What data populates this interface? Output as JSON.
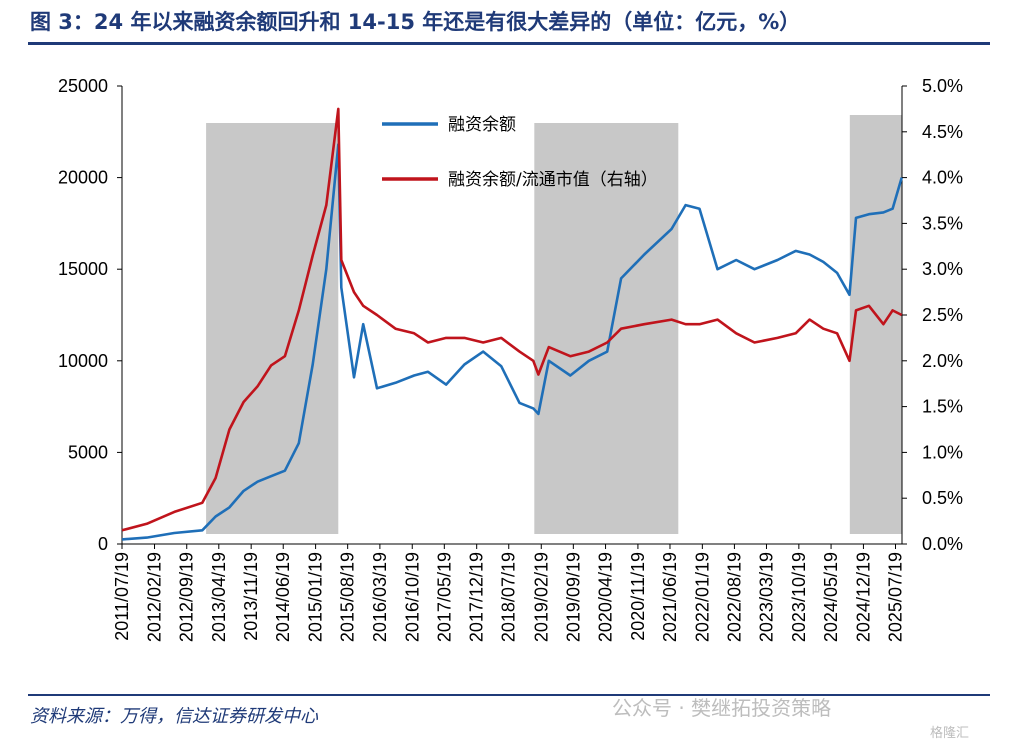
{
  "title": "图 3：24 年以来融资余额回升和 14-15 年还是有很大差异的（单位：亿元，%）",
  "source": "资料来源：万得，信达证券研发中心",
  "watermark": "公众号 · 樊继拓投资策略",
  "watermark_badge": "格隆汇",
  "colors": {
    "series1": "#1f6fb8",
    "series2": "#c0141c",
    "shade": "#c8c8c8",
    "frame": "#1f3a78"
  },
  "chart_data": {
    "type": "line",
    "x_tick_labels": [
      "2011/07/19",
      "2012/02/19",
      "2012/09/19",
      "2013/04/19",
      "2013/11/19",
      "2014/06/19",
      "2015/01/19",
      "2015/08/19",
      "2016/03/19",
      "2016/10/19",
      "2017/05/19",
      "2017/12/19",
      "2018/07/19",
      "2019/02/19",
      "2019/09/19",
      "2020/04/19",
      "2020/11/19",
      "2021/06/19",
      "2022/01/19",
      "2022/08/19",
      "2023/03/19",
      "2023/10/19",
      "2024/05/19",
      "2024/12/19",
      "2025/07/19"
    ],
    "x_range": [
      "2011-07-19",
      "2025-08-31"
    ],
    "y_left": {
      "range": [
        0,
        25000
      ],
      "ticks": [
        0,
        5000,
        10000,
        15000,
        20000,
        25000
      ],
      "tick_labels": [
        "0",
        "5000",
        "10000",
        "15000",
        "20000",
        "25000"
      ]
    },
    "y_right": {
      "range": [
        0,
        5.0
      ],
      "ticks": [
        0,
        0.5,
        1,
        1.5,
        2,
        2.5,
        3,
        3.5,
        4,
        4.5,
        5
      ],
      "tick_labels": [
        "0.0%",
        "0.5%",
        "1.0%",
        "1.5%",
        "2.0%",
        "2.5%",
        "3.0%",
        "3.5%",
        "4.0%",
        "4.5%",
        "5.0%"
      ]
    },
    "shaded_periods": [
      [
        "2013-01-25",
        "2015-06-18"
      ],
      [
        "2019-01-04",
        "2021-08-13"
      ],
      [
        "2024-09-20",
        "2025-08-31"
      ]
    ],
    "series": [
      {
        "name": "融资余额",
        "axis": "left",
        "points": [
          [
            "2011-07-19",
            250
          ],
          [
            "2011-12-30",
            350
          ],
          [
            "2012-06-29",
            600
          ],
          [
            "2012-12-31",
            750
          ],
          [
            "2013-03-29",
            1500
          ],
          [
            "2013-06-28",
            2000
          ],
          [
            "2013-09-30",
            2900
          ],
          [
            "2013-12-31",
            3400
          ],
          [
            "2014-03-31",
            3700
          ],
          [
            "2014-06-30",
            4000
          ],
          [
            "2014-09-30",
            5500
          ],
          [
            "2014-12-31",
            9800
          ],
          [
            "2015-03-31",
            15000
          ],
          [
            "2015-06-18",
            21800
          ],
          [
            "2015-07-08",
            14000
          ],
          [
            "2015-09-30",
            9100
          ],
          [
            "2015-11-30",
            12000
          ],
          [
            "2016-02-29",
            8500
          ],
          [
            "2016-06-30",
            8800
          ],
          [
            "2016-10-31",
            9200
          ],
          [
            "2017-01-31",
            9400
          ],
          [
            "2017-05-31",
            8700
          ],
          [
            "2017-09-29",
            9800
          ],
          [
            "2018-01-31",
            10500
          ],
          [
            "2018-05-31",
            9700
          ],
          [
            "2018-09-28",
            7700
          ],
          [
            "2018-12-28",
            7400
          ],
          [
            "2019-01-31",
            7100
          ],
          [
            "2019-04-10",
            10000
          ],
          [
            "2019-08-30",
            9200
          ],
          [
            "2019-12-31",
            10000
          ],
          [
            "2020-04-30",
            10500
          ],
          [
            "2020-07-31",
            14500
          ],
          [
            "2020-12-31",
            15800
          ],
          [
            "2021-06-30",
            17200
          ],
          [
            "2021-09-30",
            18500
          ],
          [
            "2021-12-31",
            18300
          ],
          [
            "2022-04-29",
            15000
          ],
          [
            "2022-08-31",
            15500
          ],
          [
            "2022-12-30",
            15000
          ],
          [
            "2023-05-31",
            15500
          ],
          [
            "2023-09-28",
            16000
          ],
          [
            "2023-12-29",
            15800
          ],
          [
            "2024-03-29",
            15400
          ],
          [
            "2024-06-28",
            14800
          ],
          [
            "2024-09-18",
            13600
          ],
          [
            "2024-10-31",
            17800
          ],
          [
            "2025-01-24",
            18000
          ],
          [
            "2025-04-30",
            18100
          ],
          [
            "2025-06-30",
            18300
          ],
          [
            "2025-08-29",
            20000
          ]
        ]
      },
      {
        "name": "融资余额/流通市值（右轴）",
        "axis": "right",
        "points": [
          [
            "2011-07-19",
            0.15
          ],
          [
            "2011-12-30",
            0.22
          ],
          [
            "2012-06-29",
            0.35
          ],
          [
            "2012-12-31",
            0.45
          ],
          [
            "2013-03-29",
            0.72
          ],
          [
            "2013-06-28",
            1.25
          ],
          [
            "2013-09-30",
            1.55
          ],
          [
            "2013-12-31",
            1.72
          ],
          [
            "2014-03-31",
            1.95
          ],
          [
            "2014-06-30",
            2.05
          ],
          [
            "2014-09-30",
            2.55
          ],
          [
            "2014-12-31",
            3.15
          ],
          [
            "2015-03-31",
            3.7
          ],
          [
            "2015-06-18",
            4.75
          ],
          [
            "2015-07-08",
            3.1
          ],
          [
            "2015-09-30",
            2.75
          ],
          [
            "2015-11-30",
            2.6
          ],
          [
            "2016-02-29",
            2.5
          ],
          [
            "2016-06-30",
            2.35
          ],
          [
            "2016-10-31",
            2.3
          ],
          [
            "2017-01-31",
            2.2
          ],
          [
            "2017-05-31",
            2.25
          ],
          [
            "2017-09-29",
            2.25
          ],
          [
            "2018-01-31",
            2.2
          ],
          [
            "2018-05-31",
            2.25
          ],
          [
            "2018-09-28",
            2.1
          ],
          [
            "2018-12-28",
            2.0
          ],
          [
            "2019-01-31",
            1.85
          ],
          [
            "2019-04-10",
            2.15
          ],
          [
            "2019-08-30",
            2.05
          ],
          [
            "2019-12-31",
            2.1
          ],
          [
            "2020-04-30",
            2.2
          ],
          [
            "2020-07-31",
            2.35
          ],
          [
            "2020-12-31",
            2.4
          ],
          [
            "2021-06-30",
            2.45
          ],
          [
            "2021-09-30",
            2.4
          ],
          [
            "2021-12-31",
            2.4
          ],
          [
            "2022-04-29",
            2.45
          ],
          [
            "2022-08-31",
            2.3
          ],
          [
            "2022-12-30",
            2.2
          ],
          [
            "2023-05-31",
            2.25
          ],
          [
            "2023-09-28",
            2.3
          ],
          [
            "2023-12-29",
            2.45
          ],
          [
            "2024-03-29",
            2.35
          ],
          [
            "2024-06-28",
            2.3
          ],
          [
            "2024-09-18",
            2.0
          ],
          [
            "2024-10-31",
            2.55
          ],
          [
            "2025-01-24",
            2.6
          ],
          [
            "2025-04-30",
            2.4
          ],
          [
            "2025-06-30",
            2.55
          ],
          [
            "2025-08-29",
            2.5
          ]
        ]
      }
    ],
    "legend": [
      "融资余额",
      "融资余额/流通市值（右轴）"
    ]
  }
}
